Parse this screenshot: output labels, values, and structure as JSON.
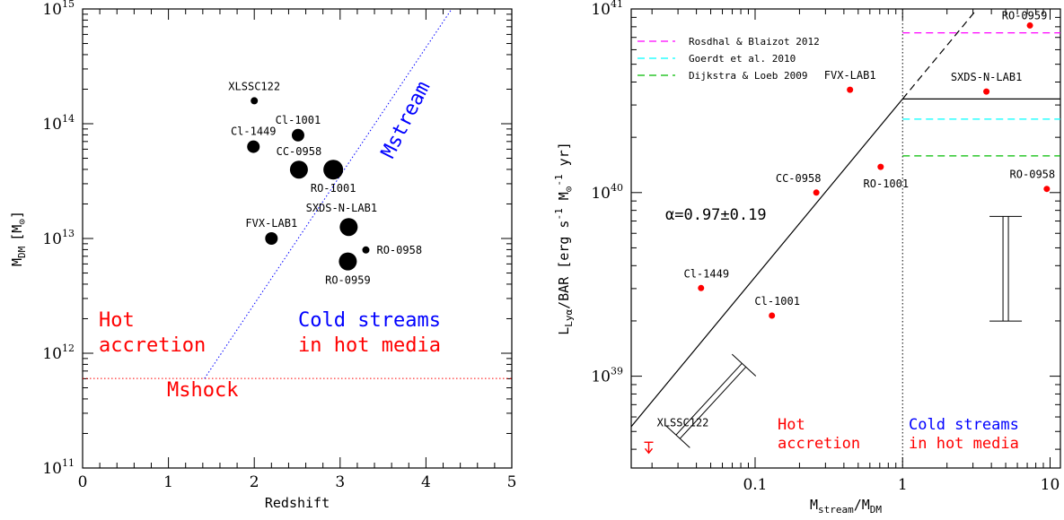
{
  "chart_data": [
    {
      "type": "scatter",
      "xlabel": "Redshift",
      "ylabel": "M",
      "ylabel_sub": "DM",
      "ylabel_unit": "[M",
      "ylabel_sun": "⊙",
      "ylabel_close": "]",
      "xlim": [
        0,
        5
      ],
      "ylim_log10": [
        11,
        15
      ],
      "x_ticks": [
        "0",
        "1",
        "2",
        "3",
        "4",
        "5"
      ],
      "y_ticks": [
        {
          "base": "10",
          "exp": "11"
        },
        {
          "base": "10",
          "exp": "12"
        },
        {
          "base": "10",
          "exp": "13"
        },
        {
          "base": "10",
          "exp": "14"
        },
        {
          "base": "10",
          "exp": "15"
        }
      ],
      "points": [
        {
          "label": "XLSSC122",
          "x": 2.0,
          "logy": 14.2,
          "size": 1
        },
        {
          "label": "Cl-1001",
          "x": 2.51,
          "logy": 13.9,
          "size": 2
        },
        {
          "label": "Cl-1449",
          "x": 1.99,
          "logy": 13.8,
          "size": 2
        },
        {
          "label": "CC-0958",
          "x": 2.52,
          "logy": 13.6,
          "size": 3
        },
        {
          "label": "RO-1001",
          "x": 2.92,
          "logy": 13.6,
          "size": 4
        },
        {
          "label": "SXDS-N-LAB1",
          "x": 3.1,
          "logy": 13.1,
          "size": 3
        },
        {
          "label": "FVX-LAB1",
          "x": 2.2,
          "logy": 13.0,
          "size": 2
        },
        {
          "label": "RO-0958",
          "x": 3.3,
          "logy": 12.9,
          "size": 1
        },
        {
          "label": "RO-0959",
          "x": 3.09,
          "logy": 12.8,
          "size": 3
        }
      ],
      "mstream_line": {
        "label": "Mstream",
        "from": [
          1.42,
          11.78
        ],
        "to": [
          4.3,
          15.0
        ]
      },
      "mshock_line": {
        "label": "Mshock",
        "logy": 11.78
      },
      "regions": {
        "hot": [
          "Hot",
          "accretion"
        ],
        "cold": [
          "Cold streams",
          "in hot media"
        ]
      },
      "colors": {
        "red": "#ff0000",
        "blue": "#0000ff",
        "black": "#000000"
      }
    },
    {
      "type": "scatter",
      "xlabel": "M",
      "xlabel_sub1": "stream",
      "xlabel_slash": "/M",
      "xlabel_sub2": "DM",
      "ylabel": "L",
      "ylabel_sub": "Lyα",
      "ylabel_rest": "/BAR [erg s",
      "ylabel_exp1": "-1",
      "ylabel_m": " M",
      "ylabel_sun": "⊙",
      "ylabel_exp2": "-1",
      "ylabel_end": " yr]",
      "xlim_log10": [
        -1.84,
        1.07
      ],
      "ylim_log10": [
        38.5,
        41
      ],
      "x_ticks": [
        "0.1",
        "1",
        "10"
      ],
      "y_ticks": [
        {
          "base": "10",
          "exp": "39"
        },
        {
          "base": "10",
          "exp": "40"
        },
        {
          "base": "10",
          "exp": "41"
        }
      ],
      "points": [
        {
          "label": "RO-0959",
          "x": 7.3,
          "logy": 40.91
        },
        {
          "label": "FVX-LAB1",
          "x": 0.44,
          "logy": 40.56
        },
        {
          "label": "SXDS-N-LAB1",
          "x": 3.7,
          "logy": 40.55
        },
        {
          "label": "RO-1001",
          "x": 0.71,
          "logy": 40.14
        },
        {
          "label": "CC-0958",
          "x": 0.26,
          "logy": 40.0
        },
        {
          "label": "RO-0958",
          "x": 9.5,
          "logy": 40.02
        },
        {
          "label": "Cl-1449",
          "x": 0.043,
          "logy": 39.48
        },
        {
          "label": "Cl-1001",
          "x": 0.13,
          "logy": 39.33
        }
      ],
      "upper_limit": {
        "label": "XLSSC122",
        "x": 0.019,
        "logy": 38.65
      },
      "fit": {
        "label": "α=0.97±0.19",
        "slope": 0.97,
        "intercept": 40.51
      },
      "plateau_logy": 40.51,
      "legend": [
        {
          "name": "Rosdhal & Blaizot 2012",
          "color": "#ff00ff",
          "logy": 40.87
        },
        {
          "name": "Goerdt et al. 2010",
          "color": "#00ffff",
          "logy": 40.4
        },
        {
          "name": "Dijkstra & Loeb 2009",
          "color": "#00bb00",
          "logy": 40.2
        }
      ],
      "errorbar_vertical": {
        "x": 5.0,
        "logy_low": 39.3,
        "logy_high": 39.87
      },
      "errorbar_diagonal": {
        "from": [
          0.03,
          38.67
        ],
        "to": [
          0.084,
          39.06
        ]
      },
      "regions": {
        "hot": [
          "Hot",
          "accretion"
        ],
        "cold": [
          "Cold streams",
          "in hot media"
        ]
      }
    }
  ]
}
